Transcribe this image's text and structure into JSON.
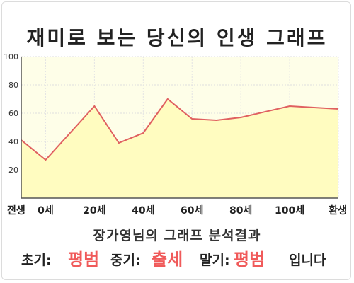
{
  "title": "재미로 보는 당신의 인생 그래프",
  "chart_data": {
    "type": "area",
    "x": [
      -10,
      0,
      20,
      30,
      40,
      50,
      60,
      70,
      80,
      100,
      120
    ],
    "values": [
      41,
      27,
      65,
      39,
      46,
      70,
      56,
      55,
      57,
      65,
      63
    ],
    "xticks": [
      {
        "x": -10,
        "label": "전생"
      },
      {
        "x": 0,
        "label": "0세"
      },
      {
        "x": 20,
        "label": "20세"
      },
      {
        "x": 40,
        "label": "40세"
      },
      {
        "x": 60,
        "label": "60세"
      },
      {
        "x": 80,
        "label": "80세"
      },
      {
        "x": 100,
        "label": "100세"
      },
      {
        "x": 120,
        "label": "환생"
      }
    ],
    "yticks": [
      20,
      40,
      60,
      80,
      100
    ],
    "ylim": [
      0,
      100
    ],
    "xlim": [
      -10,
      120
    ],
    "grid": true,
    "fill_color": "#fffcc0",
    "line_color": "#e06060",
    "plot_bg_color": "#fefee8"
  },
  "summary": {
    "subtitle": "장가영님의 그래프 분석결과",
    "early_label": "초기:",
    "early_value": "평범",
    "middle_label": "중기:",
    "middle_value": "출세",
    "late_label": "말기:",
    "late_value": "평범",
    "ending": "입니다"
  }
}
